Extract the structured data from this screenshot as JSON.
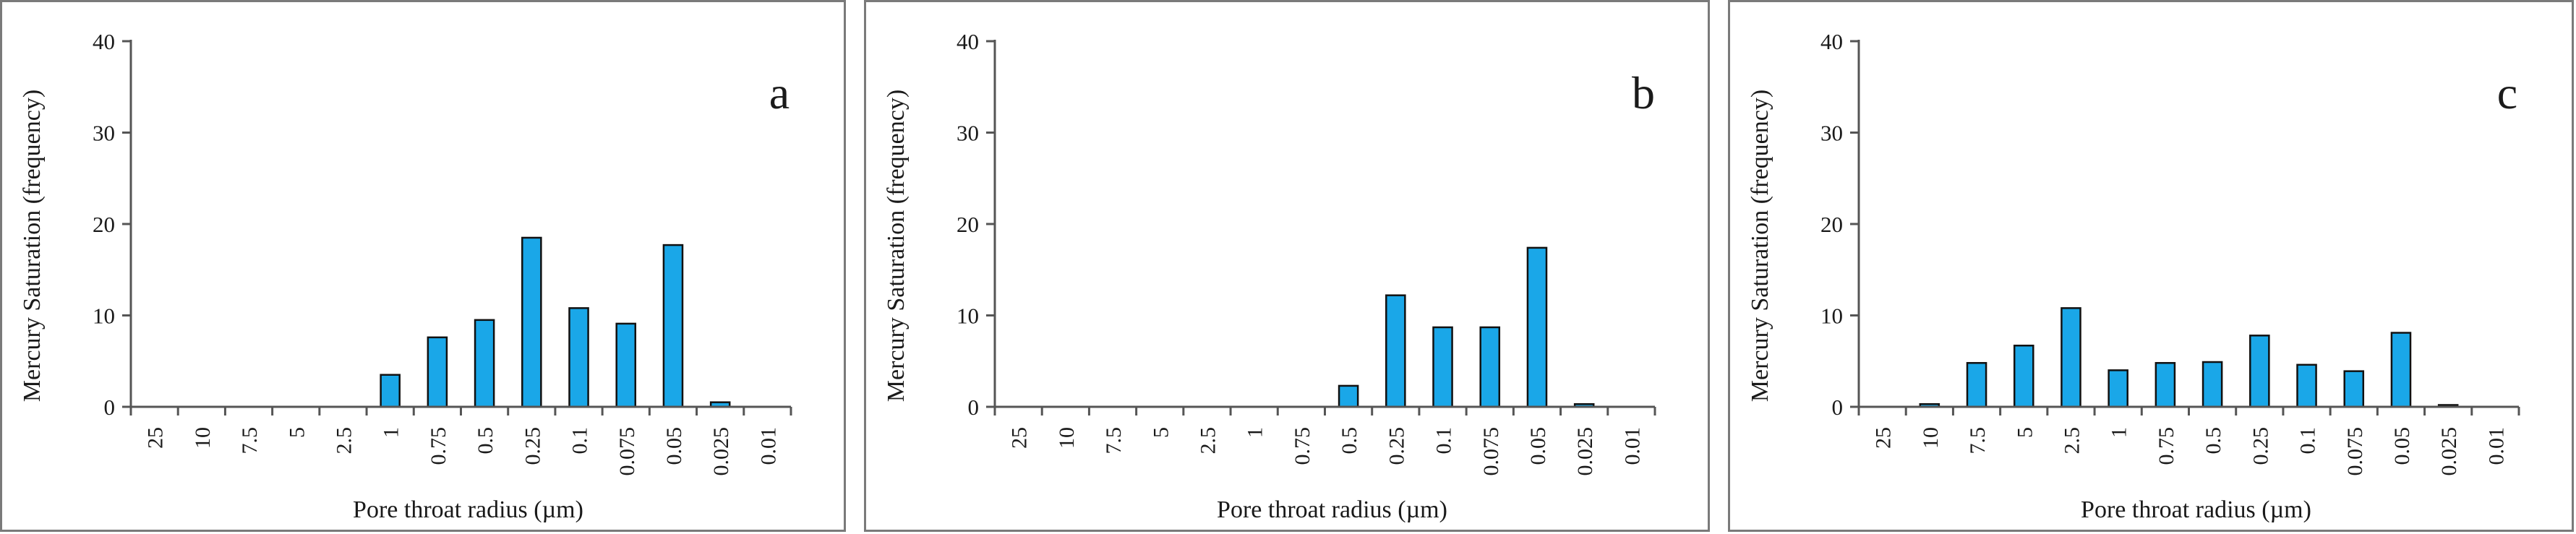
{
  "chart_data": [
    {
      "type": "bar",
      "panel_label": "a",
      "xlabel": "Pore throat radius (µm)",
      "ylabel": "Mercury Saturation (frequency)",
      "ylim": [
        0,
        40
      ],
      "yticks": [
        "0",
        "10",
        "20",
        "30",
        "40"
      ],
      "grid": false,
      "bar_color": "#1aa7e8",
      "categories": [
        "25",
        "10",
        "7.5",
        "5",
        "2.5",
        "1",
        "0.75",
        "0.5",
        "0.25",
        "0.1",
        "0.075",
        "0.05",
        "0.025",
        "0.01"
      ],
      "values": [
        0,
        0,
        0,
        0,
        0,
        3.5,
        7.6,
        9.5,
        18.5,
        10.8,
        9.1,
        17.7,
        0.5,
        0
      ]
    },
    {
      "type": "bar",
      "panel_label": "b",
      "xlabel": "Pore throat radius (µm)",
      "ylabel": "Mercury Saturation (frequency)",
      "ylim": [
        0,
        40
      ],
      "yticks": [
        "0",
        "10",
        "20",
        "30",
        "40"
      ],
      "grid": false,
      "bar_color": "#1aa7e8",
      "categories": [
        "25",
        "10",
        "7.5",
        "5",
        "2.5",
        "1",
        "0.75",
        "0.5",
        "0.25",
        "0.1",
        "0.075",
        "0.05",
        "0.025",
        "0.01"
      ],
      "values": [
        0,
        0,
        0,
        0,
        0,
        0,
        0,
        2.3,
        12.2,
        8.7,
        8.7,
        17.4,
        0.3,
        0
      ]
    },
    {
      "type": "bar",
      "panel_label": "c",
      "xlabel": "Pore throat radius (µm)",
      "ylabel": "Mercury Saturation (frequency)",
      "ylim": [
        0,
        40
      ],
      "yticks": [
        "0",
        "10",
        "20",
        "30",
        "40"
      ],
      "grid": false,
      "bar_color": "#1aa7e8",
      "categories": [
        "25",
        "10",
        "7.5",
        "5",
        "2.5",
        "1",
        "0.75",
        "0.5",
        "0.25",
        "0.1",
        "0.075",
        "0.05",
        "0.025",
        "0.01"
      ],
      "values": [
        0,
        0.3,
        4.8,
        6.7,
        10.8,
        4.0,
        4.8,
        4.9,
        7.8,
        4.6,
        3.9,
        8.1,
        0.2,
        0
      ]
    }
  ]
}
